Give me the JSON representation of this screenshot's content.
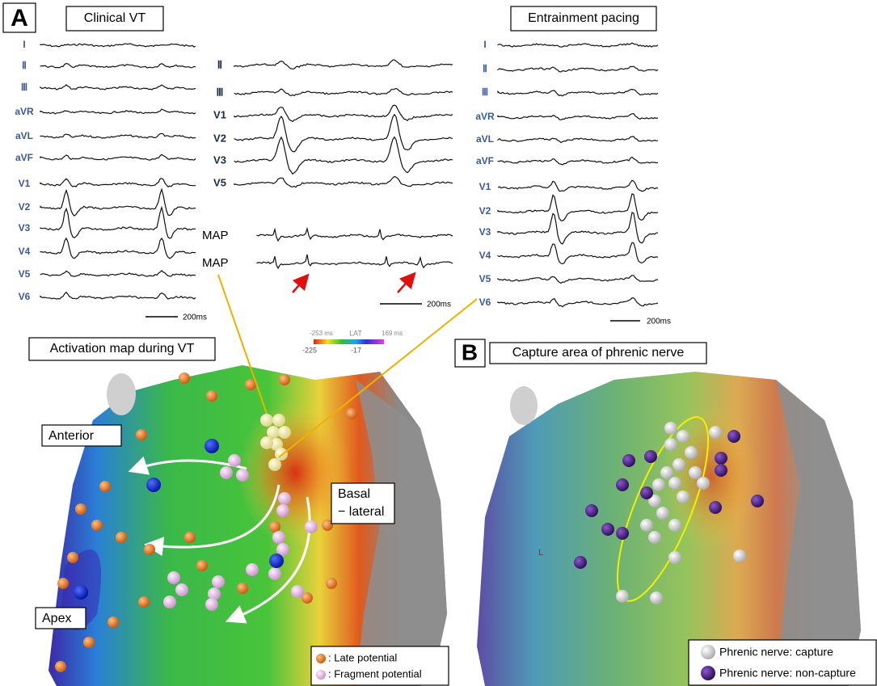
{
  "panel_a": {
    "label": "A",
    "clinical_vt": {
      "title": "Clinical  VT",
      "leads": [
        "I",
        "Ⅱ",
        "Ⅲ",
        "aVR",
        "aVL",
        "aVF",
        "V1",
        "V2",
        "V3",
        "V4",
        "V5",
        "V6"
      ],
      "scale": "200ms"
    },
    "map_recording": {
      "leads": [
        "Ⅱ",
        "Ⅲ",
        "V1",
        "V2",
        "V3",
        "V5"
      ],
      "map_labels": [
        "MAP",
        "MAP"
      ],
      "scale": "200ms"
    },
    "entrainment": {
      "title": "Entrainment pacing",
      "leads": [
        "I",
        "Ⅱ",
        "Ⅲ",
        "aVR",
        "aVL",
        "aVF",
        "V1",
        "V2",
        "V3",
        "V4",
        "V5",
        "V6"
      ],
      "scale": "200ms"
    },
    "activation_map": {
      "title": "Activation map during VT",
      "lat_scale": {
        "min_label": "-253 ms",
        "title": "LAT",
        "max_label": "169 ms",
        "marks": [
          "-225",
          "-17"
        ]
      },
      "regions": [
        "Anterior",
        "Basal",
        "− lateral",
        "Apex"
      ],
      "legend": [
        ": Late potential",
        ": Fragment potential"
      ]
    }
  },
  "panel_b": {
    "label": "B",
    "title": "Capture area of phrenic nerve",
    "marker": "L",
    "legend": [
      "Phrenic nerve: capture",
      "Phrenic nerve: non-capture"
    ]
  }
}
